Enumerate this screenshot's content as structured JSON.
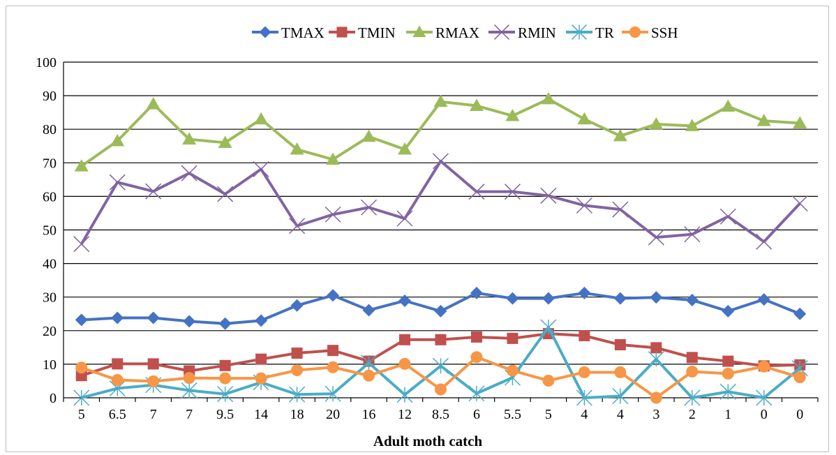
{
  "chart_data": {
    "type": "line",
    "title": "",
    "xlabel": "Adult moth catch",
    "ylabel": "",
    "ylim": [
      0,
      100
    ],
    "yticks": [
      0,
      10,
      20,
      30,
      40,
      50,
      60,
      70,
      80,
      90,
      100
    ],
    "grid": "horizontal",
    "legend_position": "top",
    "categories": [
      "5",
      "6.5",
      "7",
      "7",
      "9.5",
      "14",
      "18",
      "20",
      "16",
      "12",
      "8.5",
      "6",
      "5.5",
      "5",
      "4",
      "4",
      "3",
      "2",
      "1",
      "0",
      "0"
    ],
    "series": [
      {
        "name": "TMAX",
        "color": "#4472C4",
        "marker": "diamond",
        "values": [
          23.2,
          23.8,
          23.8,
          22.8,
          22.1,
          23.0,
          27.5,
          30.5,
          26.1,
          28.9,
          25.8,
          31.2,
          29.6,
          29.6,
          31.2,
          29.6,
          29.9,
          29.1,
          25.8,
          29.3,
          25.0
        ]
      },
      {
        "name": "TMIN",
        "color": "#C0504D",
        "marker": "square",
        "values": [
          6.6,
          10.1,
          10.1,
          8.0,
          9.6,
          11.5,
          13.3,
          14.1,
          10.9,
          17.3,
          17.3,
          18.1,
          17.7,
          19.1,
          18.5,
          15.8,
          14.9,
          12.0,
          10.9,
          9.5,
          9.8
        ]
      },
      {
        "name": "RMAX",
        "color": "#9BBB59",
        "marker": "triangle",
        "values": [
          69.0,
          76.5,
          87.5,
          77.0,
          76.0,
          83.0,
          74.0,
          71.0,
          77.8,
          74.0,
          88.2,
          87.0,
          84.0,
          89.0,
          83.0,
          78.0,
          81.5,
          81.0,
          86.8,
          82.5,
          81.8
        ]
      },
      {
        "name": "RMIN",
        "color": "#8064A2",
        "marker": "x",
        "values": [
          45.8,
          64.2,
          61.5,
          66.9,
          60.7,
          68.1,
          51.2,
          54.6,
          56.7,
          53.4,
          70.5,
          61.4,
          61.4,
          60.2,
          57.3,
          56.1,
          47.8,
          48.7,
          54.0,
          46.5,
          57.9
        ]
      },
      {
        "name": "TR",
        "color": "#4BACC6",
        "marker": "star",
        "values": [
          0,
          2.8,
          3.8,
          2.2,
          1.1,
          4.6,
          1.0,
          1.2,
          10.4,
          0.9,
          9.5,
          1.3,
          6.0,
          21.0,
          0,
          0.5,
          11.5,
          0,
          1.8,
          0,
          8.8
        ]
      },
      {
        "name": "SSH",
        "color": "#F79646",
        "marker": "circle",
        "values": [
          9.0,
          5.3,
          4.9,
          5.9,
          5.8,
          5.8,
          8.2,
          9.1,
          6.6,
          10.1,
          2.5,
          12.1,
          8.1,
          5.1,
          7.6,
          7.6,
          0,
          7.8,
          7.2,
          9.3,
          6.1
        ]
      }
    ]
  }
}
